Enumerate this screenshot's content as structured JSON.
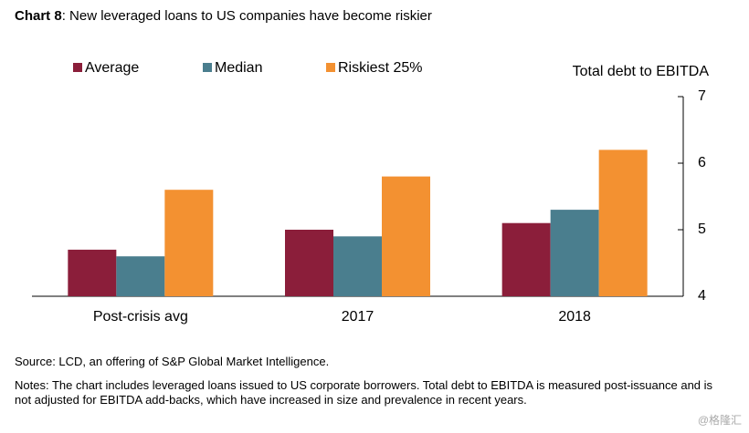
{
  "chart_data": {
    "type": "bar",
    "title_label": "Chart 8",
    "title": ": New leveraged loans to US companies have become riskier",
    "y_axis_label": "Total debt to EBITDA",
    "categories": [
      "Post-crisis avg",
      "2017",
      "2018"
    ],
    "series": [
      {
        "name": "Average",
        "color": "#8b1e3a",
        "values": [
          4.7,
          5.0,
          5.1
        ]
      },
      {
        "name": "Median",
        "color": "#4a7e8e",
        "values": [
          4.6,
          4.9,
          5.3
        ]
      },
      {
        "name": "Riskiest 25%",
        "color": "#f39131",
        "values": [
          5.6,
          5.8,
          6.2
        ]
      }
    ],
    "ylim": [
      4,
      7
    ],
    "yticks": [
      4,
      5,
      6,
      7
    ],
    "y_axis_side": "right",
    "grid": false,
    "source": "Source: LCD, an offering of S&P Global Market Intelligence.",
    "notes": "Notes: The chart includes leveraged loans issued to US corporate borrowers. Total debt to EBITDA is measured post-issuance and is not adjusted for EBITDA add-backs, which have increased in size and prevalence in recent years.",
    "watermark": "@格隆汇"
  }
}
